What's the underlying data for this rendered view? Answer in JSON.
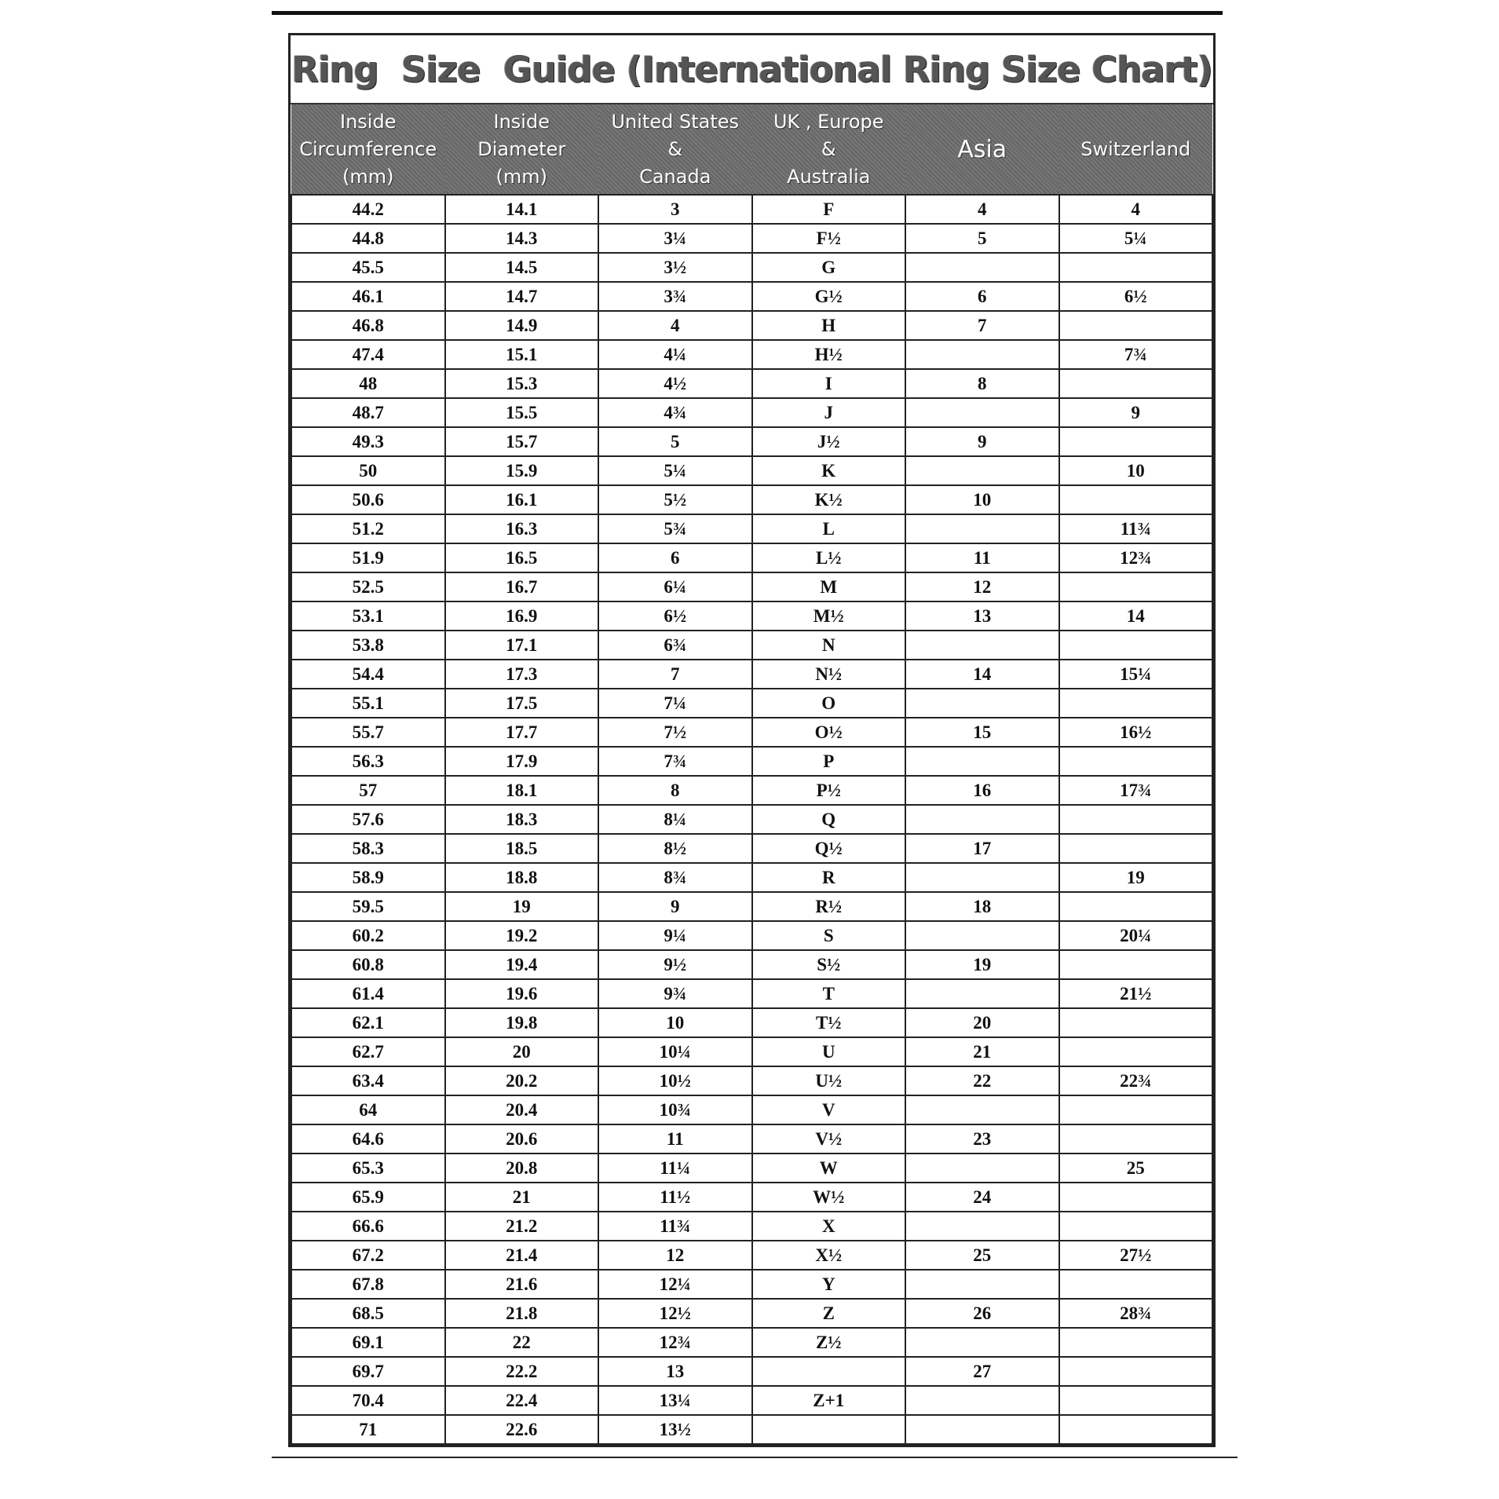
{
  "title": "Ring  Size  Guide (International Ring Size Chart)",
  "columns": [
    "Inside\nCircumference\n(mm)",
    "Inside\nDiameter\n(mm)",
    "United States\n&\nCanada",
    "UK , Europe\n&\nAustralia",
    "Asia",
    "Switzerland"
  ],
  "rows": [
    [
      "44.2",
      "14.1",
      "3",
      "F",
      "4",
      "4"
    ],
    [
      "44.8",
      "14.3",
      "3¼",
      "F½",
      "5",
      "5¼"
    ],
    [
      "45.5",
      "14.5",
      "3½",
      "G",
      "",
      ""
    ],
    [
      "46.1",
      "14.7",
      "3¾",
      "G½",
      "6",
      "6½"
    ],
    [
      "46.8",
      "14.9",
      "4",
      "H",
      "7",
      ""
    ],
    [
      "47.4",
      "15.1",
      "4¼",
      "H½",
      "",
      "7¾"
    ],
    [
      "48",
      "15.3",
      "4½",
      "I",
      "8",
      ""
    ],
    [
      "48.7",
      "15.5",
      "4¾",
      "J",
      "",
      "9"
    ],
    [
      "49.3",
      "15.7",
      "5",
      "J½",
      "9",
      ""
    ],
    [
      "50",
      "15.9",
      "5¼",
      "K",
      "",
      "10"
    ],
    [
      "50.6",
      "16.1",
      "5½",
      "K½",
      "10",
      ""
    ],
    [
      "51.2",
      "16.3",
      "5¾",
      "L",
      "",
      "11¾"
    ],
    [
      "51.9",
      "16.5",
      "6",
      "L½",
      "11",
      "12¾"
    ],
    [
      "52.5",
      "16.7",
      "6¼",
      "M",
      "12",
      ""
    ],
    [
      "53.1",
      "16.9",
      "6½",
      "M½",
      "13",
      "14"
    ],
    [
      "53.8",
      "17.1",
      "6¾",
      "N",
      "",
      ""
    ],
    [
      "54.4",
      "17.3",
      "7",
      "N½",
      "14",
      "15¼"
    ],
    [
      "55.1",
      "17.5",
      "7¼",
      "O",
      "",
      ""
    ],
    [
      "55.7",
      "17.7",
      "7½",
      "O½",
      "15",
      "16½"
    ],
    [
      "56.3",
      "17.9",
      "7¾",
      "P",
      "",
      ""
    ],
    [
      "57",
      "18.1",
      "8",
      "P½",
      "16",
      "17¾"
    ],
    [
      "57.6",
      "18.3",
      "8¼",
      "Q",
      "",
      ""
    ],
    [
      "58.3",
      "18.5",
      "8½",
      "Q½",
      "17",
      ""
    ],
    [
      "58.9",
      "18.8",
      "8¾",
      "R",
      "",
      "19"
    ],
    [
      "59.5",
      "19",
      "9",
      "R½",
      "18",
      ""
    ],
    [
      "60.2",
      "19.2",
      "9¼",
      "S",
      "",
      "20¼"
    ],
    [
      "60.8",
      "19.4",
      "9½",
      "S½",
      "19",
      ""
    ],
    [
      "61.4",
      "19.6",
      "9¾",
      "T",
      "",
      "21½"
    ],
    [
      "62.1",
      "19.8",
      "10",
      "T½",
      "20",
      ""
    ],
    [
      "62.7",
      "20",
      "10¼",
      "U",
      "21",
      ""
    ],
    [
      "63.4",
      "20.2",
      "10½",
      "U½",
      "22",
      "22¾"
    ],
    [
      "64",
      "20.4",
      "10¾",
      "V",
      "",
      ""
    ],
    [
      "64.6",
      "20.6",
      "11",
      "V½",
      "23",
      ""
    ],
    [
      "65.3",
      "20.8",
      "11¼",
      "W",
      "",
      "25"
    ],
    [
      "65.9",
      "21",
      "11½",
      "W½",
      "24",
      ""
    ],
    [
      "66.6",
      "21.2",
      "11¾",
      "X",
      "",
      ""
    ],
    [
      "67.2",
      "21.4",
      "12",
      "X½",
      "25",
      "27½"
    ],
    [
      "67.8",
      "21.6",
      "12¼",
      "Y",
      "",
      ""
    ],
    [
      "68.5",
      "21.8",
      "12½",
      "Z",
      "26",
      "28¾"
    ],
    [
      "69.1",
      "22",
      "12¾",
      "Z½",
      "",
      ""
    ],
    [
      "69.7",
      "22.2",
      "13",
      "",
      "27",
      ""
    ],
    [
      "70.4",
      "22.4",
      "13¼",
      "Z+1",
      "",
      ""
    ],
    [
      "71",
      "22.6",
      "13½",
      "",
      "",
      ""
    ]
  ]
}
